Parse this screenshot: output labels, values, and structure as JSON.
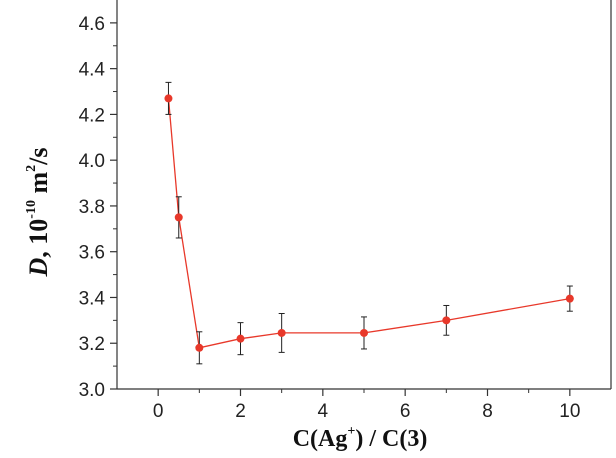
{
  "chart_data": {
    "type": "scatter",
    "title": "",
    "xlabel": {
      "main": "C(Ag",
      "sup": "+",
      "tail": ") / C(3)"
    },
    "ylabel": {
      "var": "D",
      "comma": ", 10",
      "sup1": "-10",
      "mid": " m",
      "sup2": "2",
      "tail": "/s"
    },
    "xlim": [
      -1,
      11
    ],
    "ylim": [
      3.0,
      4.7
    ],
    "xticks": [
      {
        "value": 0,
        "label": "0"
      },
      {
        "value": 2,
        "label": "2"
      },
      {
        "value": 4,
        "label": "4"
      },
      {
        "value": 6,
        "label": "6"
      },
      {
        "value": 8,
        "label": "8"
      },
      {
        "value": 10,
        "label": "10"
      }
    ],
    "yticks": [
      {
        "value": 3.0,
        "label": "3.0"
      },
      {
        "value": 3.2,
        "label": "3.2"
      },
      {
        "value": 3.4,
        "label": "3.4"
      },
      {
        "value": 3.6,
        "label": "3.6"
      },
      {
        "value": 3.8,
        "label": "3.8"
      },
      {
        "value": 4.0,
        "label": "4.0"
      },
      {
        "value": 4.2,
        "label": "4.2"
      },
      {
        "value": 4.4,
        "label": "4.4"
      },
      {
        "value": 4.6,
        "label": "4.6"
      }
    ],
    "series": [
      {
        "color": "#e8382a",
        "line": true,
        "points": [
          {
            "x": 0.25,
            "y": 4.27,
            "err": 0.07
          },
          {
            "x": 0.5,
            "y": 3.75,
            "err": 0.09
          },
          {
            "x": 1.0,
            "y": 3.18,
            "err": 0.07
          },
          {
            "x": 2.0,
            "y": 3.22,
            "err": 0.07
          },
          {
            "x": 3.0,
            "y": 3.245,
            "err": 0.085
          },
          {
            "x": 5.0,
            "y": 3.245,
            "err": 0.07
          },
          {
            "x": 7.0,
            "y": 3.3,
            "err": 0.065
          },
          {
            "x": 10.0,
            "y": 3.395,
            "err": 0.055
          }
        ]
      }
    ],
    "grid": false,
    "legend": "none",
    "axis_color": "#333333",
    "errorbar_color": "#222222"
  }
}
